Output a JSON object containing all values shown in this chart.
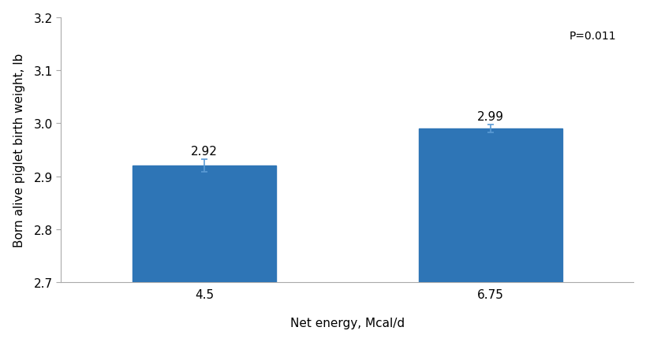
{
  "categories": [
    "4.5",
    "6.75"
  ],
  "values": [
    2.92,
    2.99
  ],
  "errors": [
    0.012,
    0.008
  ],
  "bar_color": "#2E75B6",
  "bar_width": 0.5,
  "bar_positions": [
    1,
    2
  ],
  "ylabel": "Born alive piglet birth weight, lb",
  "xlabel": "Net energy, Mcal/d",
  "ylim": [
    2.7,
    3.2
  ],
  "yticks": [
    2.7,
    2.8,
    2.9,
    3.0,
    3.1,
    3.2
  ],
  "pvalue_text": "P=0.011",
  "background_color": "#ffffff",
  "label_fontsize": 11,
  "tick_fontsize": 11,
  "annotation_fontsize": 11,
  "pvalue_fontsize": 10
}
